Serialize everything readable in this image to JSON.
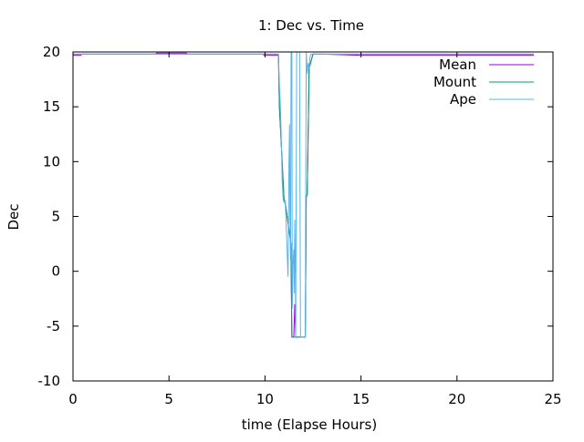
{
  "chart_data": {
    "type": "line",
    "title": "1: Dec vs. Time",
    "xlabel": "time (Elapse Hours)",
    "ylabel": "Dec",
    "xlim": [
      0,
      25
    ],
    "ylim": [
      -10,
      20
    ],
    "xticks": [
      0,
      5,
      10,
      15,
      20,
      25
    ],
    "yticks": [
      -10,
      -5,
      0,
      5,
      10,
      15,
      20
    ],
    "grid": false,
    "legend_position": "top-right",
    "series": [
      {
        "name": "Mean",
        "color": "#9400d3",
        "x": [
          0,
          0.4,
          0.45,
          4.3,
          4.35,
          5.9,
          5.95,
          9.9,
          9.95,
          10.7,
          10.75,
          11.0,
          11.05,
          11.35,
          11.4,
          11.5,
          11.55,
          11.6,
          12.1,
          12.15,
          12.2,
          12.3,
          12.5,
          13.0,
          15.0,
          16.0,
          20.0,
          24.0
        ],
        "y": [
          19.7,
          19.7,
          19.8,
          19.8,
          19.9,
          19.9,
          19.8,
          19.8,
          19.7,
          19.7,
          15.0,
          6.3,
          6.3,
          2.5,
          -6.0,
          -6.0,
          -3.0,
          -6.0,
          -6.0,
          6.8,
          7.0,
          18.5,
          19.8,
          19.8,
          19.7,
          19.7,
          19.7,
          19.7
        ]
      },
      {
        "name": "Mount",
        "color": "#009e73",
        "x": [
          0,
          4.3,
          6.0,
          10.7,
          10.75,
          11.0,
          11.05,
          11.35,
          11.4,
          11.6,
          12.1,
          12.15,
          12.2,
          12.3,
          12.5,
          24.0
        ],
        "y": [
          19.8,
          19.8,
          19.8,
          19.8,
          15.0,
          6.3,
          6.3,
          2.5,
          -6.0,
          -6.0,
          -6.0,
          6.8,
          7.0,
          18.5,
          19.8,
          19.8
        ]
      },
      {
        "name": "Ape",
        "color": "#56b4e9",
        "x": [
          0,
          10.7,
          10.75,
          10.8,
          10.85,
          10.9,
          10.95,
          11.0,
          11.05,
          11.1,
          11.15,
          11.2,
          11.25,
          11.28,
          11.3,
          11.33,
          11.36,
          11.4,
          11.42,
          11.45,
          11.5,
          11.52,
          11.55,
          11.58,
          11.6,
          11.65,
          11.7,
          11.75,
          11.8,
          11.85,
          12.0,
          12.1,
          12.12,
          12.15,
          12.2,
          12.25,
          12.3,
          12.35,
          12.4,
          12.5,
          24.0
        ],
        "y": [
          19.8,
          19.8,
          17.0,
          15.0,
          12.0,
          8.0,
          6.5,
          6.3,
          6.5,
          4.5,
          2.0,
          -0.5,
          10.0,
          13.4,
          5.0,
          1.0,
          20.0,
          20.0,
          -3.4,
          0.5,
          2.0,
          -2.0,
          4.7,
          -0.5,
          -6.0,
          20.0,
          20.0,
          20.0,
          20.0,
          -6.0,
          -6.0,
          -6.0,
          6.5,
          20.0,
          18.0,
          19.0,
          18.5,
          19.6,
          19.8,
          19.8,
          19.8
        ]
      }
    ]
  }
}
